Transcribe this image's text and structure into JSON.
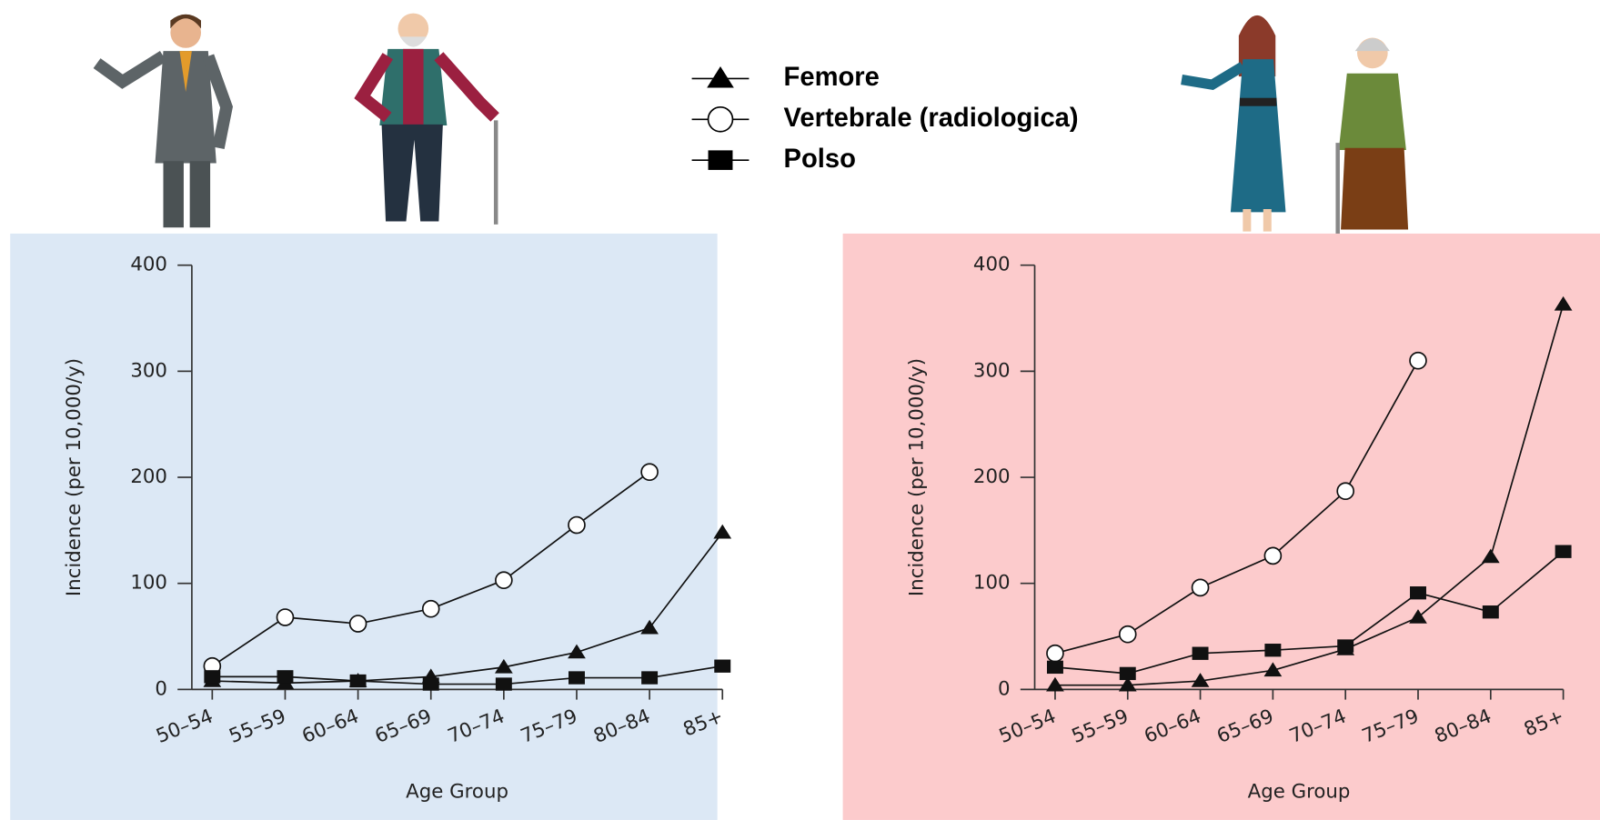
{
  "chart_data": [
    {
      "type": "line",
      "background": "#dce8f5",
      "y_label": "Incidence (per 10,000/y)",
      "x_label": "Age Group",
      "categories": [
        "50–54",
        "55–59",
        "60–64",
        "65–69",
        "70–74",
        "75–79",
        "80–84",
        "85+"
      ],
      "ylim": [
        0,
        400
      ],
      "yticks": [
        0,
        100,
        200,
        300,
        400
      ],
      "series": [
        {
          "name": "Femore",
          "marker": "triangle",
          "color": "#111111",
          "values": [
            8,
            6,
            8,
            12,
            21,
            35,
            58,
            148
          ]
        },
        {
          "name": "Vertebrale (radiologica)",
          "marker": "circle",
          "color": "#111111",
          "values": [
            22,
            68,
            62,
            76,
            103,
            155,
            205,
            null
          ]
        },
        {
          "name": "Polso",
          "marker": "square",
          "color": "#111111",
          "values": [
            12,
            12,
            8,
            5,
            5,
            11,
            11,
            22
          ]
        }
      ]
    },
    {
      "type": "line",
      "background": "#fccbcc",
      "y_label": "Incidence (per 10,000/y)",
      "x_label": "Age Group",
      "categories": [
        "50–54",
        "55–59",
        "60–64",
        "65–69",
        "70–74",
        "75–79",
        "80–84",
        "85+"
      ],
      "ylim": [
        0,
        400
      ],
      "yticks": [
        0,
        100,
        200,
        300,
        400
      ],
      "series": [
        {
          "marker": "triangle",
          "color": "#111111",
          "values": [
            4,
            4,
            8,
            18,
            38,
            68,
            125,
            363
          ]
        },
        {
          "marker": "circle",
          "color": "#111111",
          "values": [
            34,
            52,
            96,
            126,
            187,
            310,
            null,
            null
          ]
        },
        {
          "marker": "square",
          "color": "#111111",
          "values": [
            21,
            15,
            34,
            37,
            41,
            91,
            73,
            130
          ]
        }
      ]
    }
  ]
}
